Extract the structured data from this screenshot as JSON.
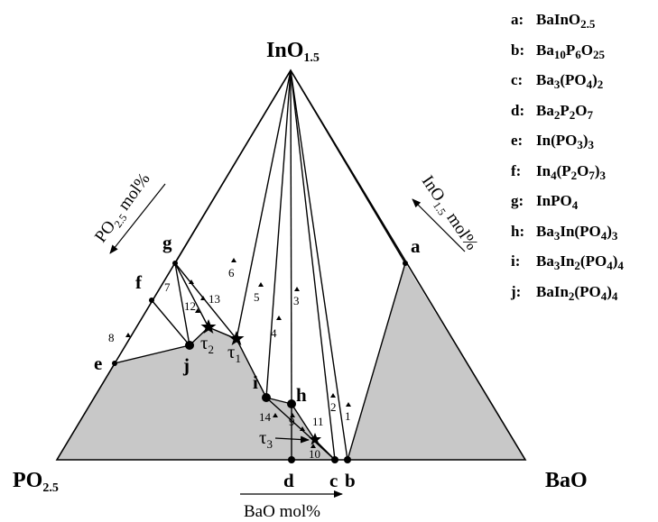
{
  "corners": {
    "top": "InO",
    "top_sub": "1.5",
    "left": "PO",
    "left_sub": "2.5",
    "right": "BaO"
  },
  "axes": {
    "bottom_main": "BaO mol%",
    "left_main": "PO",
    "left_sub": "2.5",
    "left_rest": " mol%",
    "right_main": "InO",
    "right_sub": "1.5",
    "right_rest": " mol%"
  },
  "points": [
    {
      "id": "a",
      "label": "a"
    },
    {
      "id": "b",
      "label": "b"
    },
    {
      "id": "c",
      "label": "c"
    },
    {
      "id": "d",
      "label": "d"
    },
    {
      "id": "e",
      "label": "e"
    },
    {
      "id": "f",
      "label": "f"
    },
    {
      "id": "g",
      "label": "g"
    },
    {
      "id": "h",
      "label": "h"
    },
    {
      "id": "i",
      "label": "i"
    },
    {
      "id": "j",
      "label": "j"
    }
  ],
  "special_points": [
    {
      "label": "τ",
      "sub": "1"
    },
    {
      "label": "τ",
      "sub": "2"
    },
    {
      "label": "τ",
      "sub": "3"
    }
  ],
  "regions": [
    "1",
    "2",
    "3",
    "4",
    "5",
    "6",
    "7",
    "8",
    "9",
    "10",
    "11",
    "12",
    "13",
    "14"
  ],
  "legend": [
    {
      "key": "a:",
      "formula": [
        [
          "BaInO",
          ""
        ],
        [
          "2.5",
          "sub"
        ]
      ]
    },
    {
      "key": "b:",
      "formula": [
        [
          "Ba",
          ""
        ],
        [
          "10",
          "sub"
        ],
        [
          "P",
          ""
        ],
        [
          "6",
          "sub"
        ],
        [
          "O",
          ""
        ],
        [
          "25",
          "sub"
        ]
      ]
    },
    {
      "key": "c:",
      "formula": [
        [
          "Ba",
          ""
        ],
        [
          "3",
          "sub"
        ],
        [
          "(PO",
          ""
        ],
        [
          "4",
          "sub"
        ],
        [
          ")",
          ""
        ],
        [
          "2",
          "sub"
        ]
      ]
    },
    {
      "key": "d:",
      "formula": [
        [
          "Ba",
          ""
        ],
        [
          "2",
          "sub"
        ],
        [
          "P",
          ""
        ],
        [
          "2",
          "sub"
        ],
        [
          "O",
          ""
        ],
        [
          "7",
          "sub"
        ]
      ]
    },
    {
      "key": "e:",
      "formula": [
        [
          "In(PO",
          ""
        ],
        [
          "3",
          "sub"
        ],
        [
          ")",
          ""
        ],
        [
          "3",
          "sub"
        ]
      ]
    },
    {
      "key": "f:",
      "formula": [
        [
          "In",
          ""
        ],
        [
          "4",
          "sub"
        ],
        [
          "(P",
          ""
        ],
        [
          "2",
          "sub"
        ],
        [
          "O",
          ""
        ],
        [
          "7",
          "sub"
        ],
        [
          ")",
          ""
        ],
        [
          "3",
          "sub"
        ]
      ]
    },
    {
      "key": "g:",
      "formula": [
        [
          "InPO",
          ""
        ],
        [
          "4",
          "sub"
        ]
      ]
    },
    {
      "key": "h:",
      "formula": [
        [
          "Ba",
          ""
        ],
        [
          "3",
          "sub"
        ],
        [
          "In(PO",
          ""
        ],
        [
          "4",
          "sub"
        ],
        [
          ")",
          ""
        ],
        [
          "3",
          "sub"
        ]
      ]
    },
    {
      "key": "i:",
      "formula": [
        [
          "Ba",
          ""
        ],
        [
          "3",
          "sub"
        ],
        [
          "In",
          ""
        ],
        [
          "2",
          "sub"
        ],
        [
          "(PO",
          ""
        ],
        [
          "4",
          "sub"
        ],
        [
          ")",
          ""
        ],
        [
          "4",
          "sub"
        ]
      ]
    },
    {
      "key": "j:",
      "formula": [
        [
          "BaIn",
          ""
        ],
        [
          "2",
          "sub"
        ],
        [
          "(PO",
          ""
        ],
        [
          "4",
          "sub"
        ],
        [
          ")",
          ""
        ],
        [
          "4",
          "sub"
        ]
      ]
    }
  ],
  "colors": {
    "shade": "#c8c8c8",
    "line": "#000000"
  }
}
